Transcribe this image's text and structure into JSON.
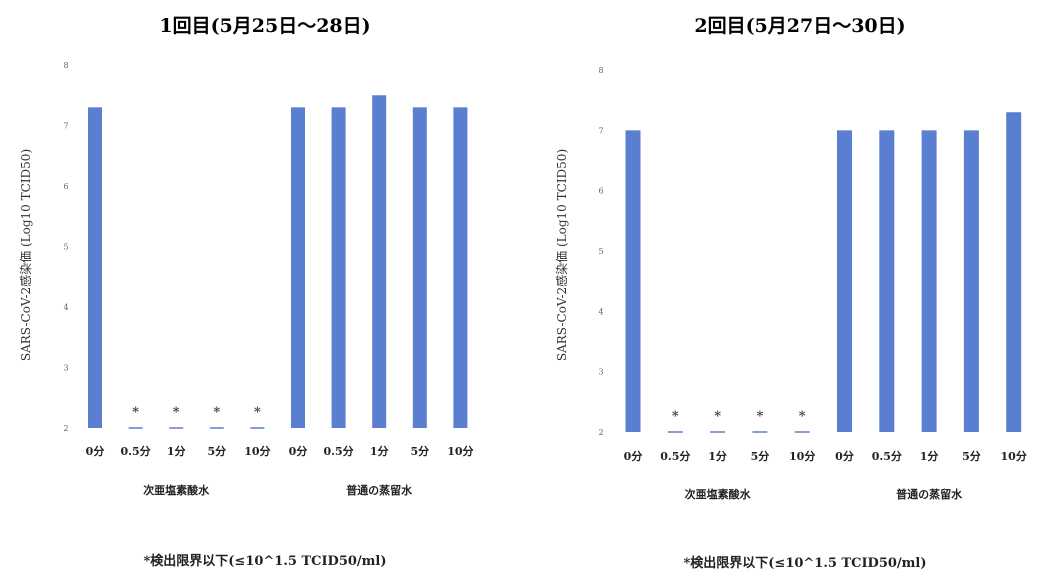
{
  "chart_data": [
    {
      "type": "bar",
      "title": "1回目(5月25日～28日)",
      "ylabel": "SARS-CoV-2感染価 (Log10 TCID50)",
      "ylim": [
        2,
        8
      ],
      "yticks": [
        2,
        3,
        4,
        5,
        6,
        7,
        8
      ],
      "categories": [
        "0分",
        "0.5分",
        "1分",
        "5分",
        "10分",
        "0分",
        "0.5分",
        "1分",
        "5分",
        "10分"
      ],
      "groups": [
        {
          "label": "次亜塩素酸水",
          "start": 0,
          "end": 4
        },
        {
          "label": "普通の蒸留水",
          "start": 5,
          "end": 9
        }
      ],
      "values": [
        7.3,
        2.0,
        2.0,
        2.0,
        2.0,
        7.3,
        7.3,
        7.5,
        7.3,
        7.3
      ],
      "below_detection_limit": [
        false,
        true,
        true,
        true,
        true,
        false,
        false,
        false,
        false,
        false
      ],
      "marker": "*",
      "footnote": "*検出限界以下(≤10^1.5 TCID50/ml)",
      "bar_color": "#5b7fd0"
    },
    {
      "type": "bar",
      "title": "2回目(5月27日～30日)",
      "ylabel": "SARS-CoV-2感染価 (Log10 TCID50)",
      "ylim": [
        2,
        8
      ],
      "yticks": [
        2,
        3,
        4,
        5,
        6,
        7,
        8
      ],
      "categories": [
        "0分",
        "0.5分",
        "1分",
        "5分",
        "10分",
        "0分",
        "0.5分",
        "1分",
        "5分",
        "10分"
      ],
      "groups": [
        {
          "label": "次亜塩素酸水",
          "start": 0,
          "end": 4
        },
        {
          "label": "普通の蒸留水",
          "start": 5,
          "end": 9
        }
      ],
      "values": [
        7.0,
        2.0,
        2.0,
        2.0,
        2.0,
        7.0,
        7.0,
        7.0,
        7.0,
        7.3
      ],
      "below_detection_limit": [
        false,
        true,
        true,
        true,
        true,
        false,
        false,
        false,
        false,
        false
      ],
      "marker": "*",
      "footnote": "*検出限界以下(≤10^1.5 TCID50/ml)",
      "bar_color": "#5b7fd0"
    }
  ]
}
